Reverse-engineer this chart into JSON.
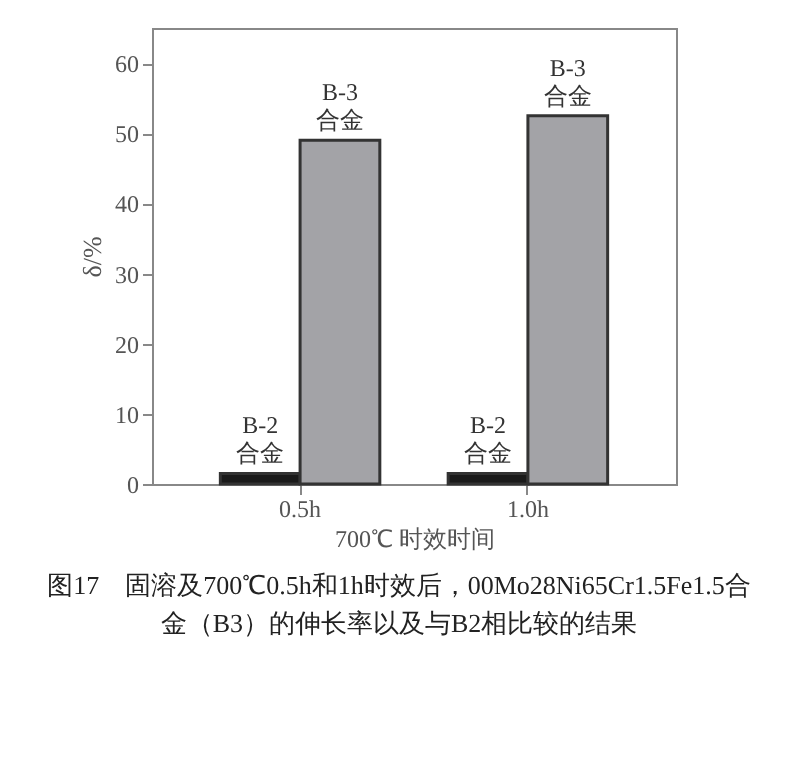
{
  "chart_data": {
    "type": "bar",
    "xlabel": "700℃ 时效时间",
    "ylabel": "δ/%",
    "categories": [
      "0.5h",
      "1.0h"
    ],
    "series": [
      {
        "name": "B-2\n合金",
        "color": "#1a1a1a",
        "values": [
          1.5,
          1.5
        ]
      },
      {
        "name": "B-3\n合金",
        "color": "#a3a3a7",
        "values": [
          49,
          52.5
        ]
      }
    ],
    "ylim": [
      0,
      65
    ],
    "yticks": [
      0,
      10,
      20,
      30,
      40,
      50,
      60
    ],
    "grid": false,
    "legend": false,
    "annotations": [
      "图17　固溶及700℃0.5h和1h时效后，00Mo28Ni65Cr1.5Fe1.5合金（B3）的伸长率以及与B2相比较的结果"
    ]
  }
}
